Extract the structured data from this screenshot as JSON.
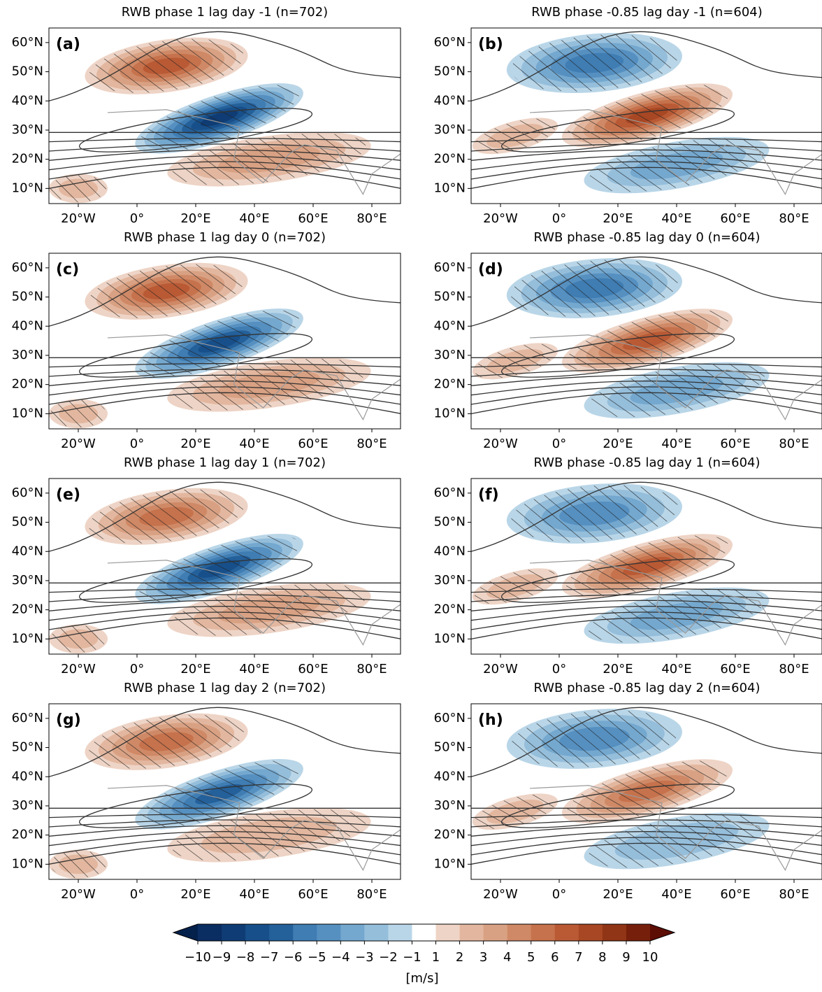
{
  "panels": [
    {
      "title": "RWB phase 1 lag day -1 (n=702)",
      "label": "(a)"
    },
    {
      "title": "RWB phase -0.85 lag day -1 (n=604)",
      "label": "(b)"
    },
    {
      "title": "RWB phase 1 lag day 0 (n=702)",
      "label": "(c)"
    },
    {
      "title": "RWB phase -0.85 lag day 0 (n=604)",
      "label": "(d)"
    },
    {
      "title": "RWB phase 1 lag day 1 (n=702)",
      "label": "(e)"
    },
    {
      "title": "RWB phase -0.85 lag day 1 (n=604)",
      "label": "(f)"
    },
    {
      "title": "RWB phase 1 lag day 2 (n=702)",
      "label": "(g)"
    },
    {
      "title": "RWB phase -0.85 lag day 2 (n=604)",
      "label": "(h)"
    }
  ],
  "xticks": [
    {
      "value": -20,
      "label": "20°W"
    },
    {
      "value": 0,
      "label": "0°"
    },
    {
      "value": 20,
      "label": "20°E"
    },
    {
      "value": 40,
      "label": "40°E"
    },
    {
      "value": 60,
      "label": "60°E"
    },
    {
      "value": 80,
      "label": "80°E"
    }
  ],
  "yticks": [
    {
      "value": 60,
      "label": "60°N"
    },
    {
      "value": 50,
      "label": "50°N"
    },
    {
      "value": 40,
      "label": "40°N"
    },
    {
      "value": 30,
      "label": "30°N"
    },
    {
      "value": 20,
      "label": "20°N"
    },
    {
      "value": 10,
      "label": "10°N"
    }
  ],
  "colorbar": {
    "label": "[m/s]",
    "ticks": [
      {
        "value": -10,
        "label": "−10"
      },
      {
        "value": -9,
        "label": "−9"
      },
      {
        "value": -8,
        "label": "−8"
      },
      {
        "value": -7,
        "label": "−7"
      },
      {
        "value": -6,
        "label": "−6"
      },
      {
        "value": -5,
        "label": "−5"
      },
      {
        "value": -4,
        "label": "−4"
      },
      {
        "value": -3,
        "label": "−3"
      },
      {
        "value": -2,
        "label": "−2"
      },
      {
        "value": -1,
        "label": "−1"
      },
      1,
      2,
      3,
      4,
      5,
      6,
      7,
      8,
      9,
      10
    ],
    "colors": [
      "#0a2d62",
      "#0f3c74",
      "#174f8a",
      "#24609a",
      "#3f7db3",
      "#5690c1",
      "#74a8cf",
      "#95bedb",
      "#b9d6e8",
      "#ffffff",
      "#eed4c6",
      "#e3b79f",
      "#d9a183",
      "#cf8966",
      "#c6724c",
      "#b95a35",
      "#a84723",
      "#903515",
      "#76200b"
    ],
    "extend_colors": [
      "#04214c",
      "#5c0d04"
    ]
  }
}
